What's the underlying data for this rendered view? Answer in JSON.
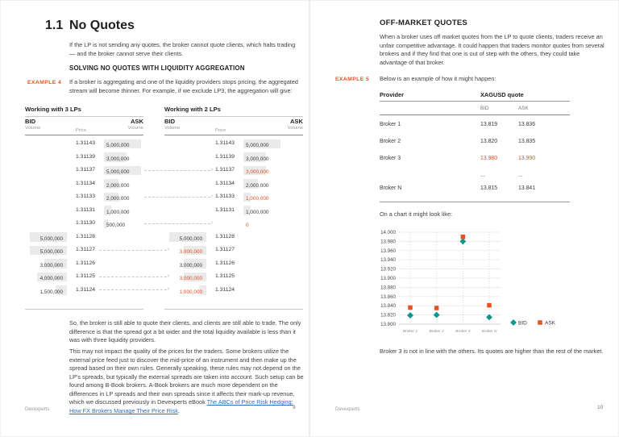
{
  "accent_orange": "#e8511f",
  "teal": "#10968c",
  "left_page": {
    "section_number": "1.1",
    "title": "No Quotes",
    "intro": "If the LP is not sending any quotes, the broker cannot quote clients, which halts trading — and the broker cannot serve their clients.",
    "subheading": "SOLVING NO QUOTES WITH LIQUIDITY AGGREGATION",
    "example_label": "EXAMPLE 4",
    "example_text": "If a broker is aggregating and one of the liquidity providers stops pricing, the aggregated stream will become thinner. For example, if we exclude LP3, the aggregation will give:",
    "ladder_headers": {
      "bid": "BID",
      "ask": "ASK",
      "volume": "Volume",
      "price": "Price"
    },
    "ladder_3lp": {
      "title": "Working with 3 LPs",
      "rows": [
        {
          "price": "1.31143",
          "side": "ask",
          "volume_label": "5,000,000",
          "volume": 5000000,
          "highlight": false
        },
        {
          "price": "1.31139",
          "side": "ask",
          "volume_label": "3,000,000",
          "volume": 3000000,
          "highlight": false
        },
        {
          "price": "1.31137",
          "side": "ask",
          "volume_label": "5,000,000",
          "volume": 5000000,
          "highlight": false
        },
        {
          "price": "1.31134",
          "side": "ask",
          "volume_label": "2,000,000",
          "volume": 2000000,
          "highlight": false
        },
        {
          "price": "1.31133",
          "side": "ask",
          "volume_label": "2,000,000",
          "volume": 2000000,
          "highlight": false
        },
        {
          "price": "1.31131",
          "side": "ask",
          "volume_label": "1,000,000",
          "volume": 1000000,
          "highlight": false
        },
        {
          "price": "1.31130",
          "side": "ask",
          "volume_label": "500,000",
          "volume": 500000,
          "highlight": false
        },
        {
          "price": "1.31128",
          "side": "bid",
          "volume_label": "5,000,000",
          "volume": 5000000,
          "highlight": false
        },
        {
          "price": "1.31127",
          "side": "bid",
          "volume_label": "5,000,000",
          "volume": 5000000,
          "highlight": false
        },
        {
          "price": "1.31126",
          "side": "bid",
          "volume_label": "3,000,000",
          "volume": 3000000,
          "highlight": false
        },
        {
          "price": "1.31125",
          "side": "bid",
          "volume_label": "4,000,000",
          "volume": 4000000,
          "highlight": false
        },
        {
          "price": "1.31124",
          "side": "bid",
          "volume_label": "1,500,000",
          "volume": 1500000,
          "highlight": false
        }
      ]
    },
    "ladder_2lp": {
      "title": "Working with 2 LPs",
      "rows": [
        {
          "price": "1.31143",
          "side": "ask",
          "volume_label": "5,000,000",
          "volume": 5000000,
          "highlight": false
        },
        {
          "price": "1.31139",
          "side": "ask",
          "volume_label": "3,000,000",
          "volume": 3000000,
          "highlight": false
        },
        {
          "price": "1.31137",
          "side": "ask",
          "volume_label": "3,000,000",
          "volume": 3000000,
          "highlight": true
        },
        {
          "price": "1.31134",
          "side": "ask",
          "volume_label": "2,000,000",
          "volume": 2000000,
          "highlight": false
        },
        {
          "price": "1.31133",
          "side": "ask",
          "volume_label": "1,000,000",
          "volume": 1000000,
          "highlight": true
        },
        {
          "price": "1.31131",
          "side": "ask",
          "volume_label": "1,000,000",
          "volume": 1000000,
          "highlight": false
        },
        {
          "price": "",
          "side": "ask",
          "volume_label": "0",
          "volume": 0,
          "highlight": true
        },
        {
          "price": "1.31128",
          "side": "bid",
          "volume_label": "5,000,000",
          "volume": 5000000,
          "highlight": false
        },
        {
          "price": "1.31127",
          "side": "bid",
          "volume_label": "3,000,000",
          "volume": 3000000,
          "highlight": true
        },
        {
          "price": "1.31126",
          "side": "bid",
          "volume_label": "3,000,000",
          "volume": 3000000,
          "highlight": false
        },
        {
          "price": "1.31125",
          "side": "bid",
          "volume_label": "3,000,000",
          "volume": 3000000,
          "highlight": true
        },
        {
          "price": "1.31124",
          "side": "bid",
          "volume_label": "1,000,000",
          "volume": 1000000,
          "highlight": true
        }
      ]
    },
    "ladder_arrows": {
      "ask_rows": [
        2,
        4,
        6
      ],
      "bid_rows": [
        8,
        10,
        11
      ]
    },
    "para1": "So, the broker is still able to quote their clients, and clients are still able to trade. The only difference is that the spread got a bit wider and the total liquidity available is less than it was with three liquidity providers.",
    "para2": "This may not impact the quality of the prices for the traders. Some brokers utilize the external price feed just to discover the mid-price of an instrument and then make up the spread based on their own rules. Generally speaking, these rules may not depend on the LP's spreads, but typically the external spreads are taken into account. Such setup can be found among B-Book brokers. A-Book brokers are much more dependent on the differences in LP spreads and their own spreads since it affects their mark-up revenue, which we discussed previously in Devexperts eBook ",
    "link_text": "The ABCs of Price Risk Hedging: How FX Brokers Manage Their Price Risk",
    "para2_suffix": ".",
    "footer_brand": "Devexperts",
    "page_number": "9"
  },
  "right_page": {
    "heading": "OFF-MARKET QUOTES",
    "intro": "When a broker uses off market quotes from the LP to quote clients, traders receive an unfair competitive advantage.  It could happen that traders monitor quotes from several brokers and if they find that one is out of step with the others, they could take advantage of that broker.",
    "example_label": "EXAMPLE 5",
    "example_text": "Below is an example of how it might happen:",
    "provider_table": {
      "col_provider": "Provider",
      "col_quote": "XAGUSD quote",
      "col_bid": "BID",
      "col_ask": "ASK",
      "rows": [
        {
          "provider": "Broker 1",
          "bid": "13.819",
          "ask": "13.836",
          "highlight": false
        },
        {
          "provider": "Broker 2",
          "bid": "13.820",
          "ask": "13.835",
          "highlight": false
        },
        {
          "provider": "Broker 3",
          "bid": "13.980",
          "ask": "13.990",
          "highlight": true
        },
        {
          "provider": "",
          "bid": "...",
          "ask": "...",
          "highlight": false
        },
        {
          "provider": "Broker N",
          "bid": "13.815",
          "ask": "13.841",
          "highlight": false
        }
      ]
    },
    "chart_intro": "On a chart it might look like:",
    "caption": "Broker 3 is not in line with the others. Its quotes are higher than the rest of the market.",
    "footer_brand": "Devexperts",
    "page_number": "10"
  },
  "chart_data": {
    "type": "scatter",
    "categories": [
      "Broker 1",
      "Broker 2",
      "Broker 3",
      "Broker N"
    ],
    "series": [
      {
        "name": "BID",
        "values": [
          13.819,
          13.82,
          13.98,
          13.815
        ],
        "color": "#10968c",
        "marker": "diamond"
      },
      {
        "name": "ASK",
        "values": [
          13.836,
          13.835,
          13.99,
          13.841
        ],
        "color": "#ea5122",
        "marker": "square"
      }
    ],
    "ylim": [
      13.8,
      14.0
    ],
    "ytick_step": 0.02,
    "ytick_labels": [
      "14.000",
      "13.980",
      "13.960",
      "13.940",
      "13.920",
      "13.900",
      "13.880",
      "13.860",
      "13.840",
      "13.820",
      "13.800"
    ],
    "grid": true,
    "legend_position": "right-bottom"
  }
}
